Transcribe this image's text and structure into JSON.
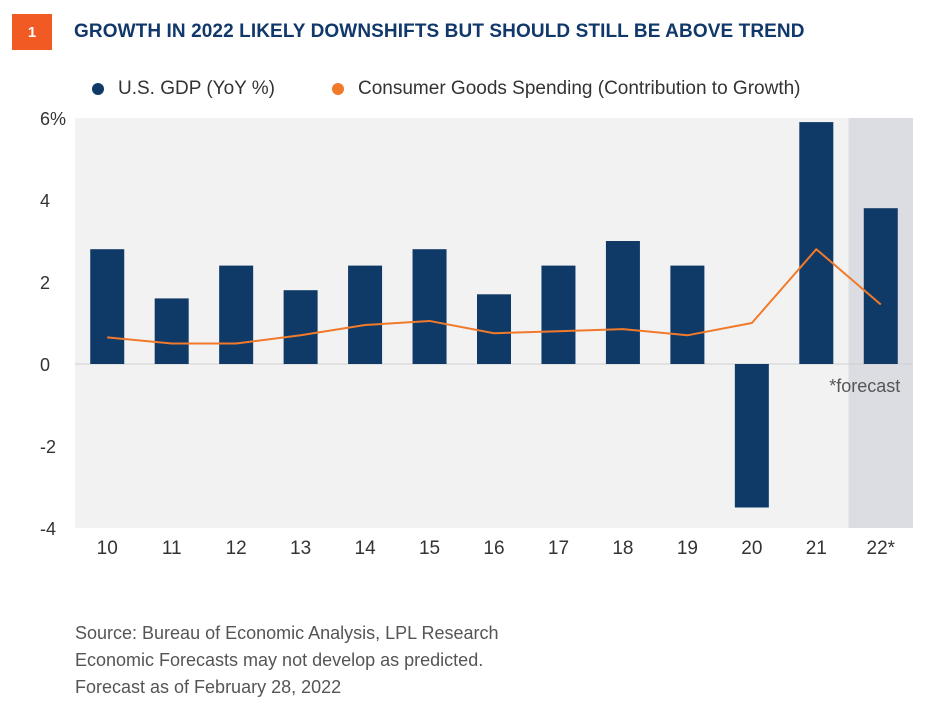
{
  "header": {
    "badge_number": "1",
    "title": "GROWTH IN 2022 LIKELY DOWNSHIFTS BUT SHOULD STILL BE ABOVE TREND"
  },
  "colors": {
    "badge": "#f15a22",
    "title": "#10386b",
    "gdp_bar": "#0f3a68",
    "consumer_line": "#f07a2a",
    "forecast_shade": "#dcdde2",
    "plot_background": "#f2f2f2"
  },
  "footnotes": {
    "source": "Source: Bureau of Economic Analysis, LPL Research",
    "disclaimer": "Economic Forecasts may not develop as predicted.",
    "as_of": "Forecast as of February 28, 2022"
  },
  "chart_data": {
    "type": "bar",
    "title": "GROWTH IN 2022 LIKELY DOWNSHIFTS BUT SHOULD STILL BE ABOVE TREND",
    "xlabel": "",
    "ylabel": "",
    "categories": [
      "10",
      "11",
      "12",
      "13",
      "14",
      "15",
      "16",
      "17",
      "18",
      "19",
      "20",
      "21",
      "22*"
    ],
    "ylim": [
      -4,
      6
    ],
    "yticks": [
      6,
      4,
      2,
      0,
      -2,
      -4
    ],
    "ytick_labels": [
      "6%",
      "4",
      "2",
      "0",
      "-2",
      "-4"
    ],
    "series": [
      {
        "name": "U.S. GDP (YoY %)",
        "type": "bar",
        "color": "#0f3a68",
        "values": [
          2.8,
          1.6,
          2.4,
          1.8,
          2.4,
          2.8,
          1.7,
          2.4,
          3.0,
          2.4,
          -3.5,
          5.9,
          3.8
        ]
      },
      {
        "name": "Consumer Goods Spending (Contribution to Growth)",
        "type": "line",
        "color": "#f07a2a",
        "values": [
          0.65,
          0.5,
          0.5,
          0.7,
          0.95,
          1.05,
          0.75,
          0.8,
          0.85,
          0.7,
          1.0,
          2.8,
          1.45
        ]
      }
    ],
    "forecast_shaded_category": "22*",
    "annotation": "*forecast",
    "grid": false,
    "legend_position": "top"
  }
}
